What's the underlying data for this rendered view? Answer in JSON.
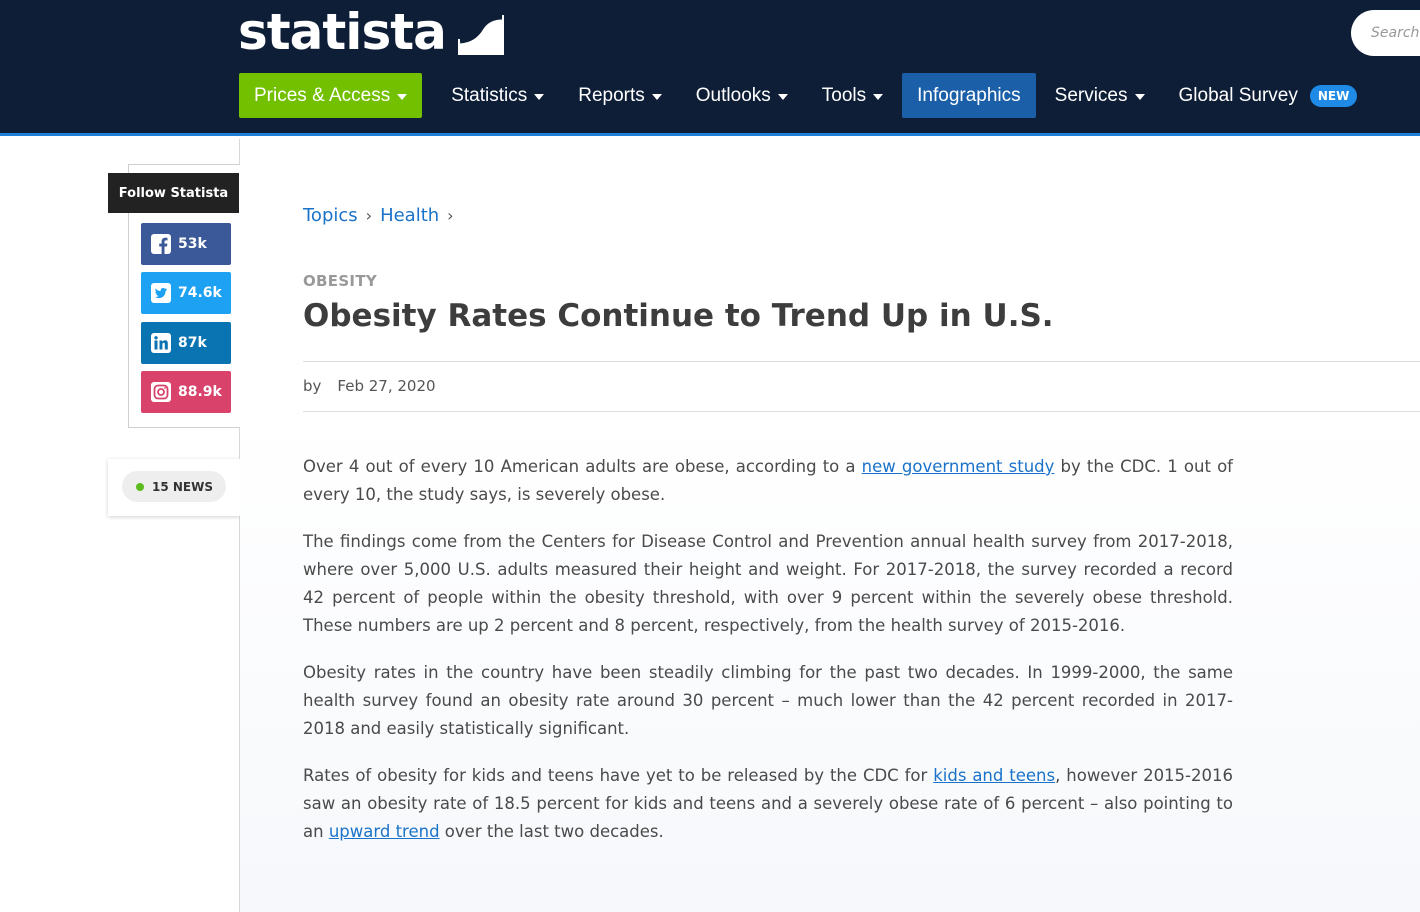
{
  "header": {
    "logo_text": "statista",
    "search_placeholder": "Search statistics",
    "nav": [
      {
        "label": "Prices & Access"
      },
      {
        "label": "Statistics"
      },
      {
        "label": "Reports"
      },
      {
        "label": "Outlooks"
      },
      {
        "label": "Tools"
      },
      {
        "label": "Infographics"
      },
      {
        "label": "Services"
      },
      {
        "label": "Global Survey",
        "badge": "NEW"
      }
    ]
  },
  "sidebar": {
    "follow_title": "Follow Statista",
    "social": [
      {
        "network": "facebook",
        "count": "53k",
        "icon": "facebook-icon",
        "color": "#3b5998"
      },
      {
        "network": "twitter",
        "count": "74.6k",
        "icon": "twitter-icon",
        "color": "#1da1f2"
      },
      {
        "network": "linkedin",
        "count": "87k",
        "icon": "linkedin-icon",
        "color": "#0a73b1"
      },
      {
        "network": "instagram",
        "count": "88.9k",
        "icon": "instagram-icon",
        "color": "#d8426b"
      }
    ],
    "news_label": "15 NEWS"
  },
  "breadcrumb": [
    "Topics",
    "Health"
  ],
  "article": {
    "kicker": "OBESITY",
    "title": "Obesity Rates Continue to Trend Up in U.S.",
    "by": "by",
    "date": "Feb 27, 2020",
    "p1_a": "Over 4 out of every 10 American adults are obese, according to a ",
    "p1_link": "new government study",
    "p1_b": " by the CDC. 1 out of every 10, the study says, is severely obese.",
    "p2": "The findings come from the Centers for Disease Control and Prevention annual health survey from 2017-2018, where over 5,000 U.S. adults measured their height and weight. For 2017-2018, the survey recorded a record 42 percent of people within the obesity threshold, with over 9 percent within the severely obese threshold. These numbers are up 2 percent and 8 percent, respectively, from the health survey of 2015-2016.",
    "p3": "Obesity rates in the country have been steadily climbing for the past two decades. In 1999-2000, the same health survey found an obesity rate around 30 percent – much lower than the 42 percent recorded in 2017-2018 and easily statistically significant.",
    "p4_a": "Rates of obesity for kids and teens have yet to be released by the CDC for ",
    "p4_link1": "kids and teens",
    "p4_b": ", however 2015-2016 saw an obesity rate of 18.5 percent for kids and teens and a severely obese rate of 6 percent – also pointing to an ",
    "p4_link2": "upward trend",
    "p4_c": " over the last two decades."
  },
  "colors": {
    "header_bg": "#0e1e37",
    "prices_green": "#73c000",
    "infographics_blue": "#1a5fa8",
    "link_blue": "#1a73c9"
  }
}
